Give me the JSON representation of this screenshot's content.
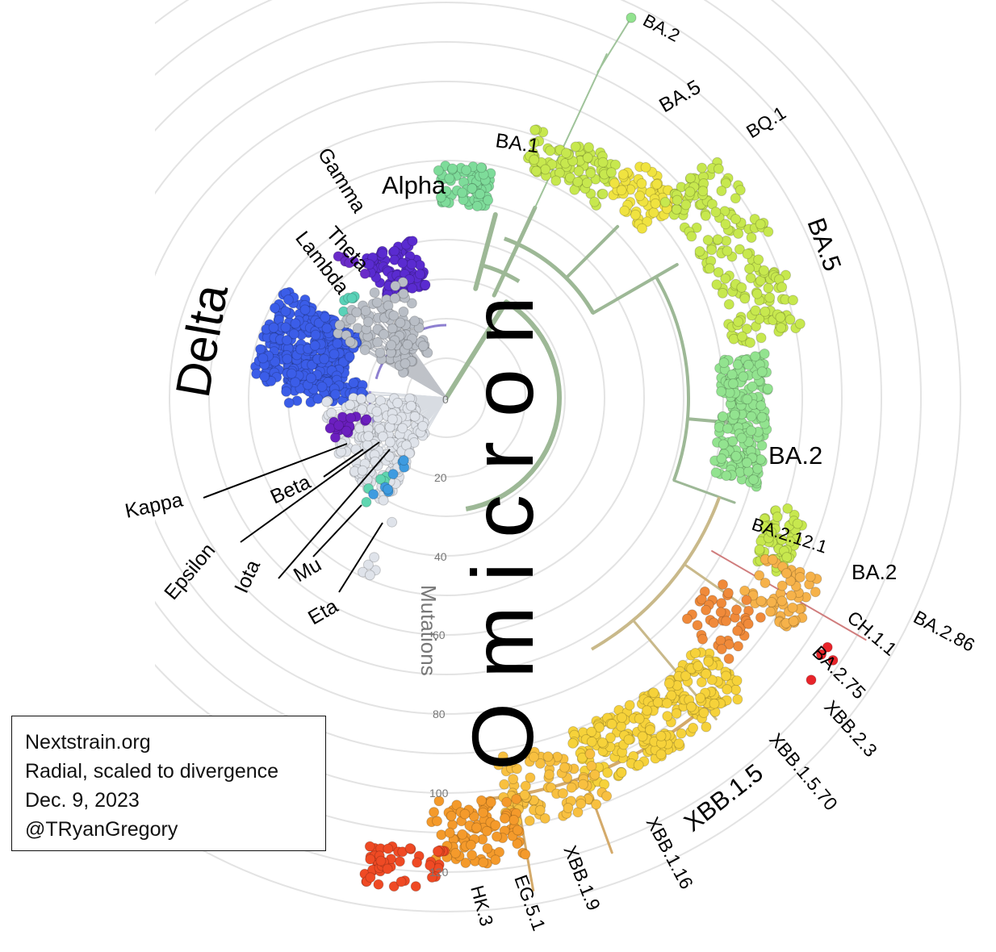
{
  "axis": {
    "title": "Mutations",
    "ticks": [
      "0",
      "20",
      "40",
      "60",
      "80",
      "100",
      "120"
    ]
  },
  "info": {
    "lines": [
      "Nextstrain.org",
      "Radial, scaled to divergence",
      "Dec. 9, 2023",
      "@TRyanGregory"
    ]
  },
  "big_label": "Omicron",
  "clade_colors": {
    "delta": "#3b5de8",
    "alpha": "#5a2bd0",
    "gamma": "#6a2bc8",
    "beta": "#6b1fbf",
    "lambda": "#5ad2b8",
    "mu": "#5fd6b0",
    "iota": "#3e9be0",
    "eta": "#4aa6e2",
    "basal": "#b9bec6",
    "ba1": "#7edc9a",
    "ba2": "#92e38f",
    "ba5": "#c7e84e",
    "bq1": "#f0e340",
    "xbb": "#f6d23a",
    "eg51": "#f49a2b",
    "hk3": "#ef4a24",
    "ba286": "#e8242a"
  },
  "labels": [
    {
      "id": "ba2-top",
      "text": "BA.2"
    },
    {
      "id": "ba5-top",
      "text": "BA.5"
    },
    {
      "id": "bq1",
      "text": "BQ.1"
    },
    {
      "id": "ba1",
      "text": "BA.1"
    },
    {
      "id": "alpha",
      "text": "Alpha"
    },
    {
      "id": "gamma",
      "text": "Gamma"
    },
    {
      "id": "theta",
      "text": "Theta"
    },
    {
      "id": "lambda",
      "text": "Lambda"
    },
    {
      "id": "delta",
      "text": "Delta"
    },
    {
      "id": "ba5-right",
      "text": "BA.5"
    },
    {
      "id": "ba2-mid",
      "text": "BA.2"
    },
    {
      "id": "ba2121",
      "text": "BA.2.12.1"
    },
    {
      "id": "ba2-right",
      "text": "BA.2"
    },
    {
      "id": "ba286",
      "text": "BA.2.86"
    },
    {
      "id": "ch11",
      "text": "CH.1.1"
    },
    {
      "id": "ba275",
      "text": "BA.2.75"
    },
    {
      "id": "xbb23",
      "text": "XBB.2.3"
    },
    {
      "id": "xbb1570",
      "text": "XBB.1.5.70"
    },
    {
      "id": "xbb15",
      "text": "XBB.1.5"
    },
    {
      "id": "xbb116",
      "text": "XBB.1.16"
    },
    {
      "id": "xbb19",
      "text": "XBB.1.9"
    },
    {
      "id": "eg51",
      "text": "EG.5.1"
    },
    {
      "id": "hk3",
      "text": "HK.3"
    },
    {
      "id": "kappa",
      "text": "Kappa"
    },
    {
      "id": "beta",
      "text": "Beta"
    },
    {
      "id": "epsilon",
      "text": "Epsilon"
    },
    {
      "id": "iota",
      "text": "Iota"
    },
    {
      "id": "mu",
      "text": "Mu"
    },
    {
      "id": "eta",
      "text": "Eta"
    }
  ]
}
